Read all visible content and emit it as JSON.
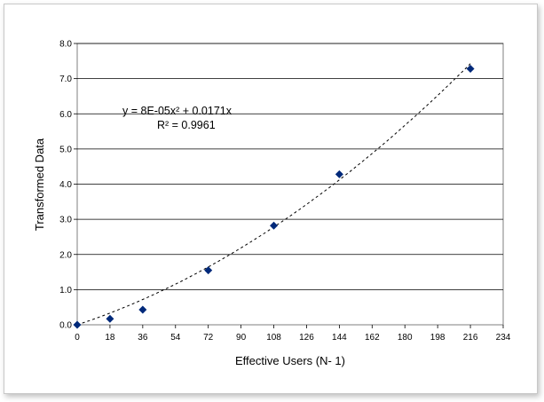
{
  "chart_data": {
    "type": "scatter",
    "xlabel": "Effective Users (N- 1)",
    "ylabel": "Transformed Data",
    "xlim": [
      0,
      234
    ],
    "ylim": [
      0,
      8
    ],
    "x_ticks": [
      "0",
      "18",
      "36",
      "54",
      "72",
      "90",
      "108",
      "126",
      "144",
      "162",
      "180",
      "198",
      "216",
      "234"
    ],
    "y_ticks": [
      "0.0",
      "1.0",
      "2.0",
      "3.0",
      "4.0",
      "5.0",
      "6.0",
      "7.0",
      "8.0"
    ],
    "grid": "horizontal",
    "marker_color": "#00297a",
    "points": [
      {
        "x": 0,
        "y": 0.0
      },
      {
        "x": 18,
        "y": 0.17
      },
      {
        "x": 36,
        "y": 0.43
      },
      {
        "x": 72,
        "y": 1.55
      },
      {
        "x": 108,
        "y": 2.82
      },
      {
        "x": 144,
        "y": 4.28
      },
      {
        "x": 216,
        "y": 7.28
      }
    ],
    "trendline": {
      "type": "polynomial",
      "a2": 8e-05,
      "a1": 0.0171,
      "equation": "y = 8E-05x² + 0.0171x",
      "r_squared": "R² = 0.9961"
    }
  }
}
